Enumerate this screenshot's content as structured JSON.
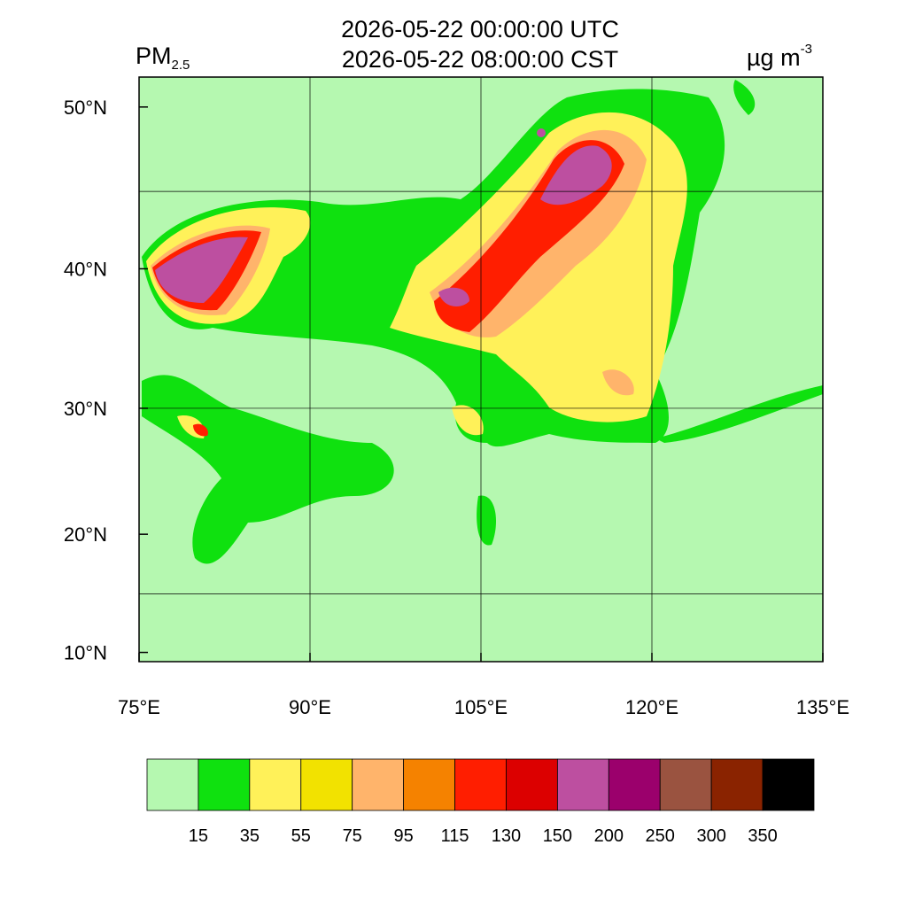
{
  "header": {
    "title_utc": "2026-05-22 00:00:00 UTC",
    "title_local": "2026-05-22 08:00:00 CST",
    "variable": "PM",
    "variable_subscript": "2.5",
    "units": "µg m",
    "units_superscript": "-3"
  },
  "map": {
    "lon_range": [
      75,
      135
    ],
    "lat_range": [
      9.2,
      52.5
    ],
    "lon_ticks": [
      {
        "value": 75,
        "label": "75°E"
      },
      {
        "value": 90,
        "label": "90°E"
      },
      {
        "value": 105,
        "label": "105°E"
      },
      {
        "value": 120,
        "label": "120°E"
      },
      {
        "value": 135,
        "label": "135°E"
      }
    ],
    "lat_ticks": [
      {
        "value": 10,
        "label": "10°N"
      },
      {
        "value": 20,
        "label": "20°N"
      },
      {
        "value": 30,
        "label": "30°N"
      },
      {
        "value": 40,
        "label": "40°N"
      },
      {
        "value": 50,
        "label": "50°N"
      }
    ],
    "grid_lon": [
      90,
      105,
      120
    ],
    "grid_lat": [
      15,
      30,
      45
    ]
  },
  "colorbar": {
    "colors": [
      "#b5f8b0",
      "#0fe10f",
      "#fff159",
      "#f2e200",
      "#ffb46b",
      "#f58200",
      "#ff1e00",
      "#dc0000",
      "#bd4fa0",
      "#9b006c",
      "#9a5340",
      "#8a2300",
      "#000000"
    ],
    "levels": [
      15,
      35,
      55,
      75,
      95,
      115,
      130,
      150,
      200,
      250,
      300,
      350
    ]
  }
}
